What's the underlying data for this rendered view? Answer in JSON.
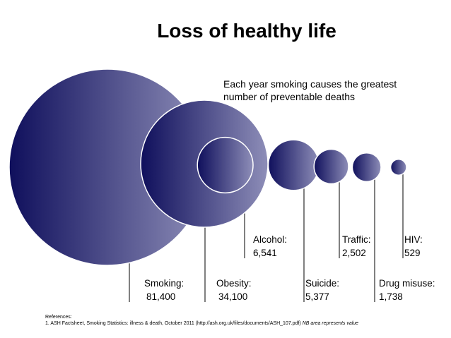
{
  "header": {
    "title": "Loss of healthy life",
    "subtitle_line1": "Each year smoking causes the greatest",
    "subtitle_line2": "number of preventable deaths"
  },
  "chart_data": {
    "type": "bubble",
    "title": "Loss of healthy life",
    "unit": "deaths per year",
    "encoding": "area represents value",
    "series": [
      {
        "key": "smoking",
        "label": "Smoking:",
        "value": 81400,
        "value_label": "81,400"
      },
      {
        "key": "obesity",
        "label": "Obesity:",
        "value": 34100,
        "value_label": "34,100"
      },
      {
        "key": "alcohol",
        "label": "Alcohol:",
        "value": 6541,
        "value_label": "6,541"
      },
      {
        "key": "suicide",
        "label": "Suicide:",
        "value": 5377,
        "value_label": "5,377"
      },
      {
        "key": "traffic",
        "label": "Traffic:",
        "value": 2502,
        "value_label": "2,502"
      },
      {
        "key": "drug",
        "label": "Drug misuse:",
        "value": 1738,
        "value_label": "1,738"
      },
      {
        "key": "hiv",
        "label": "HIV:",
        "value": 529,
        "value_label": "529"
      }
    ],
    "colors": {
      "dark": "#0f0f5c",
      "light": "#8e8eb8",
      "outline": "#ffffff",
      "leader": "#000000"
    }
  },
  "references": {
    "heading": "References:",
    "line": "1. ASH Factsheet, Smoking Statistics: illness & death, October  2011 (http://ash.org.uk/files/documents/ASH_107.pdf)",
    "note": "NB area represents value"
  }
}
